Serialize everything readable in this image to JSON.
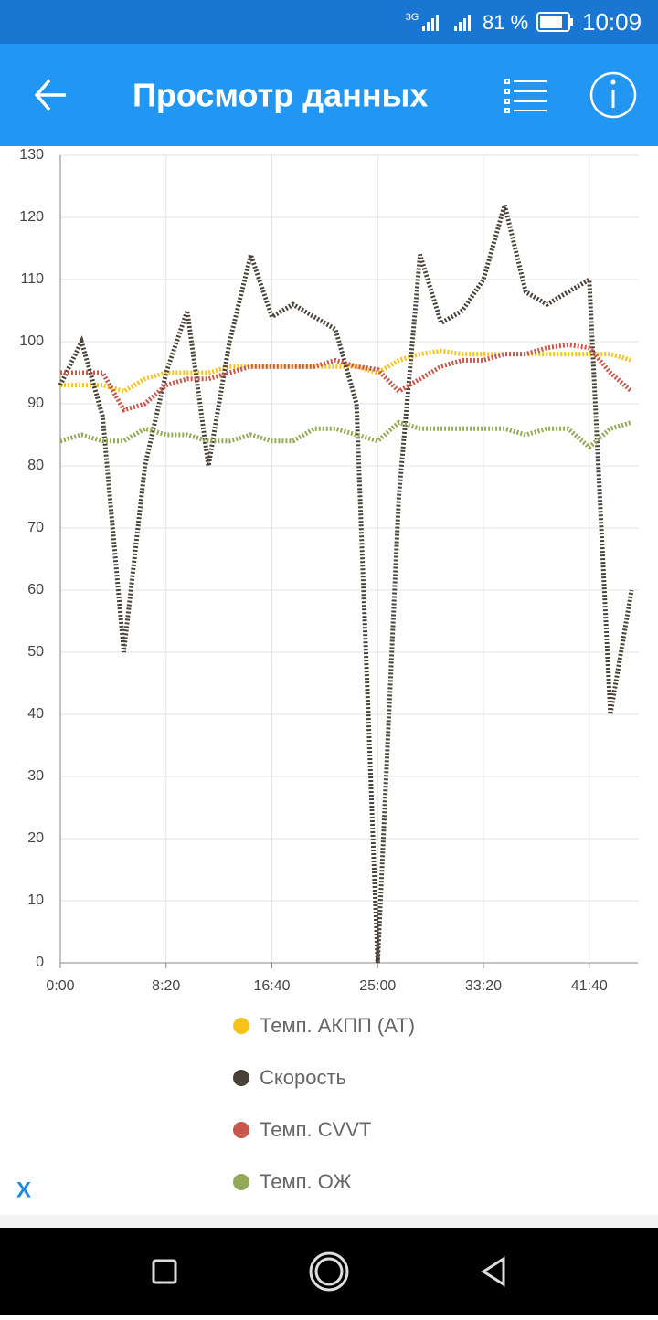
{
  "status_bar": {
    "network": "3G",
    "battery": "81 %",
    "time": "10:09"
  },
  "app_bar": {
    "title": "Просмотр данных"
  },
  "chart_data": {
    "type": "line",
    "x": [
      0,
      100,
      200,
      300,
      400,
      500,
      600,
      700,
      800,
      900,
      1000,
      1100,
      1200,
      1300,
      1400,
      1500,
      1600,
      1700,
      1800,
      1900,
      2000,
      2100,
      2200,
      2300,
      2400,
      2500,
      2600,
      2700
    ],
    "xlim": [
      0,
      2730
    ],
    "xticks": [
      {
        "value": 0,
        "label": "0:00"
      },
      {
        "value": 500,
        "label": "8:20"
      },
      {
        "value": 1000,
        "label": "16:40"
      },
      {
        "value": 1500,
        "label": "25:00"
      },
      {
        "value": 2000,
        "label": "33:20"
      },
      {
        "value": 2500,
        "label": "41:40"
      }
    ],
    "ylim": [
      0,
      130
    ],
    "yticks": [
      0,
      10,
      20,
      30,
      40,
      50,
      60,
      70,
      80,
      90,
      100,
      110,
      120,
      130
    ],
    "grid": true,
    "series": [
      {
        "name": "Темп. АКПП (AT)",
        "color": "#f9c21a",
        "values": [
          93,
          93,
          93,
          92,
          94,
          95,
          95,
          95,
          96,
          96,
          96,
          96,
          96,
          96,
          96,
          95,
          97,
          98,
          98.5,
          98,
          98,
          98,
          98,
          98,
          98,
          98,
          98,
          97
        ]
      },
      {
        "name": "Скорость",
        "color": "#4a4238",
        "values": [
          93,
          100,
          88,
          50,
          80,
          95,
          105,
          80,
          100,
          114,
          104,
          106,
          104,
          102,
          90,
          0,
          75,
          114,
          103,
          105,
          110,
          122,
          108,
          106,
          108,
          110,
          40,
          60
        ]
      },
      {
        "name": "Темп. CVVT",
        "color": "#c9574b",
        "values": [
          95,
          95,
          95,
          89,
          90,
          93,
          94,
          94,
          95,
          96,
          96,
          96,
          96,
          97,
          96,
          95.5,
          92,
          94,
          96,
          97,
          97,
          98,
          98,
          99,
          99.5,
          99,
          95,
          92
        ]
      },
      {
        "name": "Темп. ОЖ",
        "color": "#93a956",
        "values": [
          84,
          85,
          84,
          84,
          86,
          85,
          85,
          84,
          84,
          85,
          84,
          84,
          86,
          86,
          85,
          84,
          87,
          86,
          86,
          86,
          86,
          86,
          85,
          86,
          86,
          83,
          86,
          87
        ]
      }
    ]
  },
  "ad_close": "X"
}
